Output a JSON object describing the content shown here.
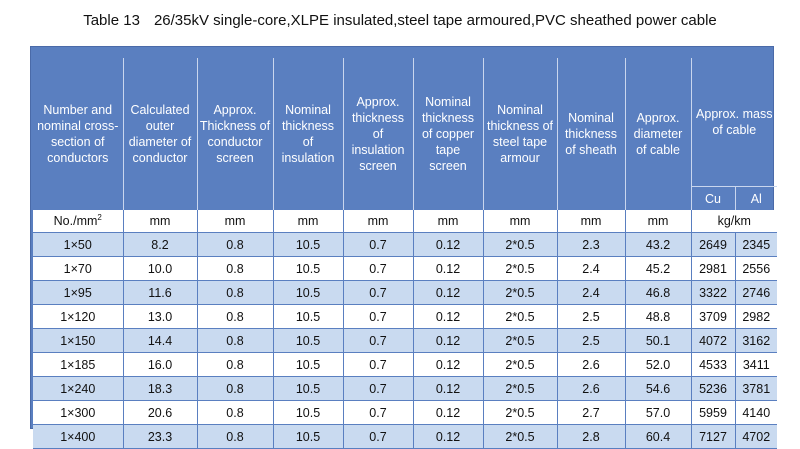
{
  "title": {
    "number": "Table 13",
    "text": "26/35kV single-core,XLPE insulated,steel tape armoured,PVC sheathed power cable"
  },
  "headers": [
    "Number and nominal cross-section of conductors",
    "Calculated outer diameter of conductor",
    "Approx. Thickness of conductor screen",
    "Nominal thickness of insulation",
    "Approx. thickness of insulation screen",
    "Nominal thickness of copper tape screen",
    "Nominal thickness of steel tape armour",
    "Nominal thickness of sheath",
    "Approx. diameter of cable",
    "Approx. mass of cable"
  ],
  "mass_subheaders": [
    "Cu",
    "Al"
  ],
  "units": [
    "No./mm",
    "mm",
    "mm",
    "mm",
    "mm",
    "mm",
    "mm",
    "mm",
    "mm",
    "kg/km"
  ],
  "unit_superscript": "2",
  "rows": [
    [
      "1×50",
      "8.2",
      "0.8",
      "10.5",
      "0.7",
      "0.12",
      "2*0.5",
      "2.3",
      "43.2",
      "2649",
      "2345"
    ],
    [
      "1×70",
      "10.0",
      "0.8",
      "10.5",
      "0.7",
      "0.12",
      "2*0.5",
      "2.4",
      "45.2",
      "2981",
      "2556"
    ],
    [
      "1×95",
      "11.6",
      "0.8",
      "10.5",
      "0.7",
      "0.12",
      "2*0.5",
      "2.4",
      "46.8",
      "3322",
      "2746"
    ],
    [
      "1×120",
      "13.0",
      "0.8",
      "10.5",
      "0.7",
      "0.12",
      "2*0.5",
      "2.5",
      "48.8",
      "3709",
      "2982"
    ],
    [
      "1×150",
      "14.4",
      "0.8",
      "10.5",
      "0.7",
      "0.12",
      "2*0.5",
      "2.5",
      "50.1",
      "4072",
      "3162"
    ],
    [
      "1×185",
      "16.0",
      "0.8",
      "10.5",
      "0.7",
      "0.12",
      "2*0.5",
      "2.6",
      "52.0",
      "4533",
      "3411"
    ],
    [
      "1×240",
      "18.3",
      "0.8",
      "10.5",
      "0.7",
      "0.12",
      "2*0.5",
      "2.6",
      "54.6",
      "5236",
      "3781"
    ],
    [
      "1×300",
      "20.6",
      "0.8",
      "10.5",
      "0.7",
      "0.12",
      "2*0.5",
      "2.7",
      "57.0",
      "5959",
      "4140"
    ],
    [
      "1×400",
      "23.3",
      "0.8",
      "10.5",
      "0.7",
      "0.12",
      "2*0.5",
      "2.8",
      "60.4",
      "7127",
      "4702"
    ]
  ],
  "colors": {
    "header_bg": "#5a7fc0",
    "row_light": "#c9daf0",
    "row_white": "#ffffff"
  }
}
